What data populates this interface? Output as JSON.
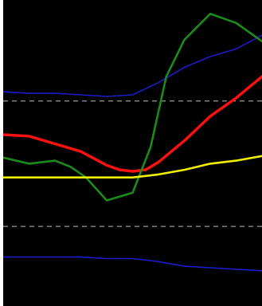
{
  "chart_data": {
    "type": "line",
    "title": "",
    "xlabel": "",
    "ylabel": "",
    "grid": false,
    "legend": "none",
    "background": "#000000",
    "xlim": [
      0,
      100
    ],
    "ylim": [
      0,
      100
    ],
    "reference_lines": [
      {
        "y": 67,
        "color": "#9a9a9a",
        "style": "dashed"
      },
      {
        "y": 26,
        "color": "#9a9a9a",
        "style": "dashed"
      }
    ],
    "series": [
      {
        "color": "#1c1cc8",
        "x": [
          0,
          10,
          20,
          30,
          40,
          50,
          60,
          70,
          80,
          90,
          100
        ],
        "y": [
          70,
          69.5,
          69.5,
          69,
          68.5,
          69,
          73,
          78,
          81.5,
          84,
          88.5
        ]
      },
      {
        "color": "#ff1010",
        "x": [
          0,
          10,
          20,
          30,
          40,
          45,
          50,
          55,
          60,
          70,
          80,
          90,
          100
        ],
        "y": [
          56,
          55.5,
          53,
          50.5,
          46,
          44.5,
          44,
          44.5,
          47,
          54,
          62,
          68,
          75
        ]
      },
      {
        "color": "#1b8c1b",
        "x": [
          0,
          10,
          20,
          26,
          32,
          40,
          50,
          57,
          63,
          70,
          80,
          90,
          100
        ],
        "y": [
          48.5,
          46.5,
          47.5,
          45.5,
          42,
          34.5,
          37,
          52,
          75,
          87,
          95.5,
          92.5,
          86.5
        ]
      },
      {
        "color": "#f0f000",
        "x": [
          0,
          10,
          20,
          30,
          40,
          50,
          60,
          70,
          80,
          90,
          100
        ],
        "y": [
          42,
          42,
          42,
          42,
          42,
          42,
          43,
          44.5,
          46.5,
          47.5,
          49
        ]
      },
      {
        "color": "#1c1cc8",
        "x": [
          0,
          10,
          20,
          30,
          40,
          50,
          60,
          70,
          80,
          90,
          100
        ],
        "y": [
          16,
          16,
          16,
          16,
          15.5,
          15.5,
          14.5,
          13,
          12.5,
          12,
          11.5
        ]
      }
    ]
  }
}
